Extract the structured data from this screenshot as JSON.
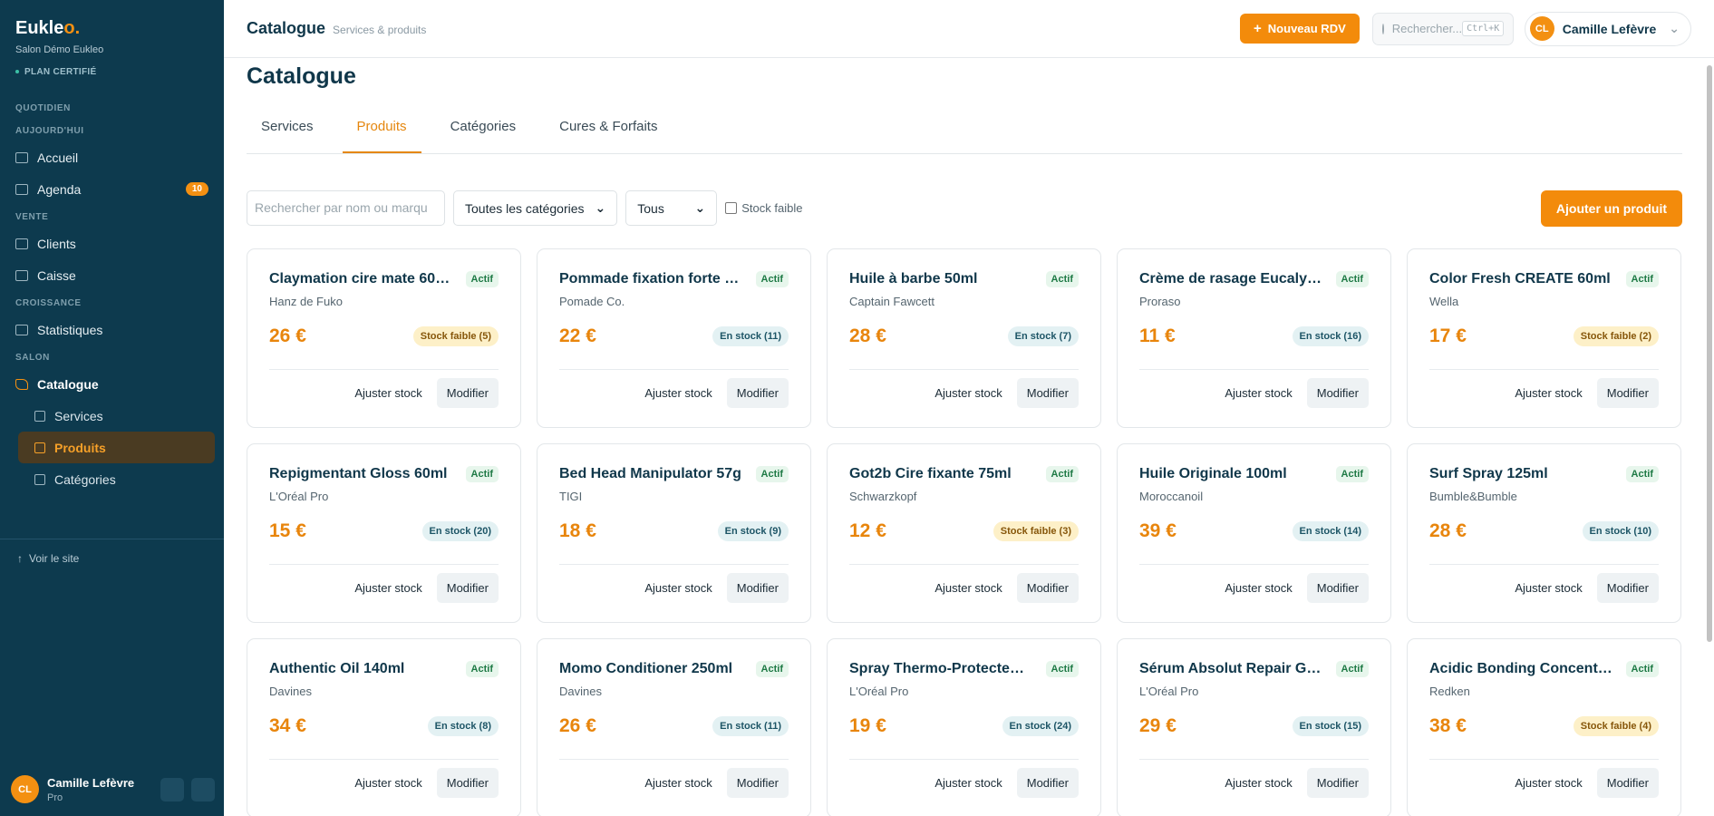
{
  "sidebar": {
    "brand": "Eukle",
    "brand_accent": "o.",
    "salon": "Salon Démo Eukleo",
    "plan": "PLAN CERTIFIÉ",
    "sections": [
      {
        "title": "QUOTIDIEN",
        "items": []
      },
      {
        "title": "AUJOURD'HUI",
        "items": [
          {
            "label": "Accueil"
          },
          {
            "label": "Agenda",
            "badge": 10
          }
        ]
      },
      {
        "title": "VENTE",
        "items": [
          {
            "label": "Clients"
          },
          {
            "label": "Caisse"
          }
        ]
      },
      {
        "title": "CROISSANCE",
        "items": [
          {
            "label": "Statistiques"
          }
        ]
      },
      {
        "title": "SALON",
        "items": [
          {
            "label": "Catalogue",
            "children": [
              {
                "label": "Services"
              },
              {
                "label": "Produits",
                "active": true
              },
              {
                "label": "Catégories"
              }
            ]
          }
        ]
      }
    ],
    "link": "Voir le site",
    "user": {
      "initials": "CL",
      "name": "Camille Lefèvre",
      "role": "Pro"
    }
  },
  "header": {
    "title": "Catalogue",
    "subtitle": "Services & produits",
    "new_button": "Nouveau RDV",
    "search": "Rechercher...",
    "shortcut": "Ctrl+K",
    "user": {
      "initials": "CL",
      "name": "Camille Lefèvre"
    }
  },
  "page": {
    "title": "Catalogue",
    "tabs": [
      "Services",
      "Produits",
      "Catégories",
      "Cures & Forfaits"
    ],
    "active_tab": 1,
    "filters": {
      "search": "Rechercher par nom ou marqu",
      "category": "Toutes les catégories",
      "status": "Tous",
      "low_stock": "Stock faible",
      "add_button": "Ajouter un produit"
    },
    "actions": {
      "adjust": "Ajuster stock",
      "edit": "Modifier"
    },
    "products": [
      {
        "name": "Claymation cire mate 60…",
        "brand": "Hanz de Fuko",
        "status": "Actif",
        "price": "26 €",
        "stock": "Stock faible (5)",
        "low": true
      },
      {
        "name": "Pommade fixation forte …",
        "brand": "Pomade Co.",
        "status": "Actif",
        "price": "22 €",
        "stock": "En stock (11)",
        "low": false
      },
      {
        "name": "Huile à barbe 50ml",
        "brand": "Captain Fawcett",
        "status": "Actif",
        "price": "28 €",
        "stock": "En stock (7)",
        "low": false
      },
      {
        "name": "Crème de rasage Eucaly…",
        "brand": "Proraso",
        "status": "Actif",
        "price": "11 €",
        "stock": "En stock (16)",
        "low": false
      },
      {
        "name": "Color Fresh CREATE 60ml",
        "brand": "Wella",
        "status": "Actif",
        "price": "17 €",
        "stock": "Stock faible (2)",
        "low": true
      },
      {
        "name": "Repigmentant Gloss 60ml",
        "brand": "L'Oréal Pro",
        "status": "Actif",
        "price": "15 €",
        "stock": "En stock (20)",
        "low": false
      },
      {
        "name": "Bed Head Manipulator 57g",
        "brand": "TIGI",
        "status": "Actif",
        "price": "18 €",
        "stock": "En stock (9)",
        "low": false
      },
      {
        "name": "Got2b Cire fixante 75ml",
        "brand": "Schwarzkopf",
        "status": "Actif",
        "price": "12 €",
        "stock": "Stock faible (3)",
        "low": true
      },
      {
        "name": "Huile Originale 100ml",
        "brand": "Moroccanoil",
        "status": "Actif",
        "price": "39 €",
        "stock": "En stock (14)",
        "low": false
      },
      {
        "name": "Surf Spray 125ml",
        "brand": "Bumble&Bumble",
        "status": "Actif",
        "price": "28 €",
        "stock": "En stock (10)",
        "low": false
      },
      {
        "name": "Authentic Oil 140ml",
        "brand": "Davines",
        "status": "Actif",
        "price": "34 €",
        "stock": "En stock (8)",
        "low": false
      },
      {
        "name": "Momo Conditioner 250ml",
        "brand": "Davines",
        "status": "Actif",
        "price": "26 €",
        "stock": "En stock (11)",
        "low": false
      },
      {
        "name": "Spray Thermo-Protecte…",
        "brand": "L'Oréal Pro",
        "status": "Actif",
        "price": "19 €",
        "stock": "En stock (24)",
        "low": false
      },
      {
        "name": "Sérum Absolut Repair G…",
        "brand": "L'Oréal Pro",
        "status": "Actif",
        "price": "29 €",
        "stock": "En stock (15)",
        "low": false
      },
      {
        "name": "Acidic Bonding Concent…",
        "brand": "Redken",
        "status": "Actif",
        "price": "38 €",
        "stock": "Stock faible (4)",
        "low": true
      }
    ]
  }
}
